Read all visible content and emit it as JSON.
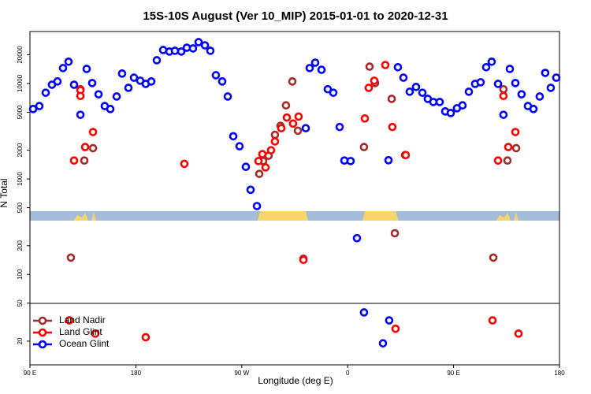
{
  "chart_data": {
    "type": "scatter",
    "title": "15S-10S August (Ver 10_MIP)   2015-01-01 to 2020-12-31",
    "x_label": "Longitude (deg E)",
    "y_label": "N Total",
    "log_y": true,
    "legend_position": "lower-left",
    "xlim": [
      90,
      540
    ],
    "xticks": [
      {
        "value": 90,
        "label": "90 E"
      },
      {
        "value": 180,
        "label": "180"
      },
      {
        "value": 270,
        "label": "90 W"
      },
      {
        "value": 360,
        "label": "0"
      },
      {
        "value": 450,
        "label": "90 E"
      },
      {
        "value": 540,
        "label": "180"
      }
    ],
    "ylim": [
      11.3,
      35000
    ],
    "yticks": [
      20,
      50,
      100,
      200,
      500,
      1000,
      2000,
      5000,
      10000,
      20000
    ],
    "series": [
      {
        "name": "Land Nadir",
        "color": "#a52a2a",
        "x": [
          124.8,
          132.9,
          136.2,
          143.6,
          284.9,
          288.2,
          292.8,
          298.2,
          302.9,
          307.6,
          313.0,
          317.7,
          322.4,
          373.9,
          378.6,
          383.3,
          397.4,
          400.1,
          408.8,
          483.8,
          492.4,
          495.8,
          503.2
        ],
        "values": [
          150,
          8700,
          1560,
          2100,
          1130,
          1540,
          1750,
          2900,
          3600,
          5900,
          10500,
          3200,
          146,
          2160,
          15000,
          10100,
          6900,
          270,
          1780,
          150,
          8700,
          1560,
          2100
        ]
      },
      {
        "name": "Land Glint",
        "color": "#ff0000",
        "x": [
          123.5,
          127.5,
          132.9,
          132.9,
          136.9,
          143.6,
          145.6,
          188.4,
          221.2,
          284.2,
          287.5,
          290.2,
          294.9,
          298.2,
          303.6,
          308.3,
          313.6,
          318.3,
          322.4,
          374.6,
          377.9,
          382.6,
          392.0,
          398.0,
          400.7,
          409.4,
          483.1,
          487.8,
          492.4,
          496.5,
          502.5,
          505.2
        ],
        "values": [
          33,
          1560,
          8500,
          7400,
          2160,
          3100,
          24,
          22,
          1440,
          1540,
          1820,
          1320,
          2000,
          2470,
          3400,
          4400,
          3800,
          4500,
          142,
          4300,
          9000,
          10700,
          15600,
          3500,
          27,
          1780,
          33,
          1560,
          7400,
          2160,
          3100,
          24
        ]
      },
      {
        "name": "Ocean Glint",
        "color": "#0000ff",
        "x": [
          92.7,
          98.0,
          103.4,
          108.7,
          113.4,
          118.1,
          122.8,
          127.5,
          132.9,
          138.2,
          142.9,
          148.3,
          153.6,
          158.3,
          163.7,
          168.3,
          173.7,
          178.4,
          183.7,
          188.4,
          193.1,
          197.8,
          203.2,
          208.5,
          213.2,
          218.6,
          223.3,
          228.6,
          233.3,
          238.7,
          243.3,
          248.0,
          253.4,
          258.1,
          262.8,
          268.1,
          273.5,
          277.5,
          282.9,
          324.4,
          327.7,
          332.4,
          337.8,
          343.1,
          347.8,
          353.2,
          357.2,
          362.5,
          367.9,
          373.9,
          390.0,
          394.7,
          395.3,
          402.7,
          407.4,
          412.7,
          418.1,
          423.5,
          428.1,
          432.8,
          438.2,
          442.9,
          447.6,
          452.9,
          457.6,
          463.0,
          468.3,
          473.0,
          477.7,
          482.4,
          487.8,
          492.4,
          497.8,
          502.5,
          507.8,
          513.2,
          517.9,
          523.2,
          527.9,
          532.6,
          537.3
        ],
        "values": [
          5400,
          5800,
          8000,
          9700,
          10500,
          14500,
          16900,
          9700,
          4700,
          14200,
          10100,
          7700,
          5800,
          5400,
          7300,
          12700,
          9000,
          11500,
          10700,
          9900,
          10500,
          17500,
          22400,
          21600,
          22000,
          21600,
          23700,
          23300,
          27100,
          25100,
          22000,
          12200,
          10500,
          7300,
          2800,
          2200,
          1340,
          770,
          520,
          3400,
          14500,
          16500,
          13900,
          8700,
          8000,
          3500,
          1560,
          1540,
          240,
          40,
          19,
          1570,
          33,
          14800,
          11500,
          8200,
          9200,
          8000,
          6900,
          6400,
          6400,
          5100,
          4900,
          5500,
          5900,
          8200,
          9900,
          10300,
          14800,
          16900,
          9900,
          4700,
          14200,
          10100,
          7700,
          5800,
          5400,
          7300,
          12900,
          9000,
          11500
        ]
      }
    ]
  }
}
